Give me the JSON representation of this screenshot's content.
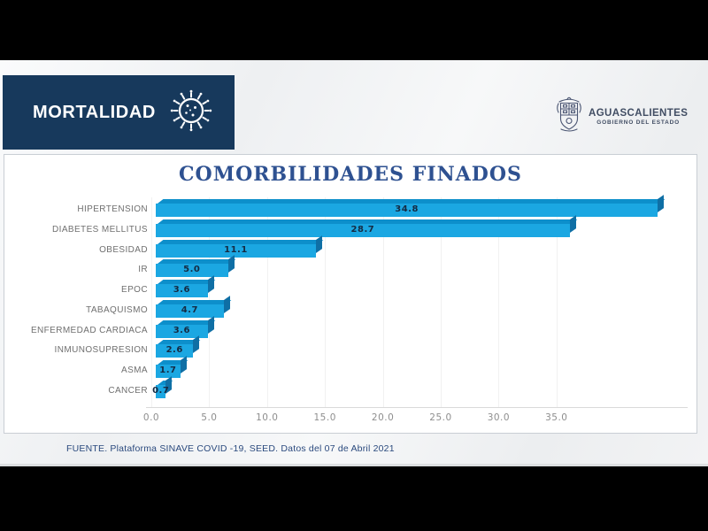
{
  "header": {
    "title": "MORTALIDAD",
    "block_color": "#17395C",
    "icon": "virus-icon"
  },
  "logo": {
    "icon": "state-coat-of-arms",
    "name": "AGUASCALIENTES",
    "subtitle": "GOBIERNO DEL ESTADO"
  },
  "chart_data": {
    "type": "bar",
    "orientation": "horizontal",
    "title": "COMORBILIDADES FINADOS",
    "categories": [
      "HIPERTENSION",
      "DIABETES MELLITUS",
      "OBESIDAD",
      "IR",
      "EPOC",
      "TABAQUISMO",
      "ENFERMEDAD CARDIACA",
      "INMUNOSUPRESION",
      "ASMA",
      "CANCER"
    ],
    "values": [
      34.8,
      28.7,
      11.1,
      5.0,
      3.6,
      4.7,
      3.6,
      2.6,
      1.7,
      0.7
    ],
    "x_ticks": [
      "0.0",
      "5.0",
      "10.0",
      "15.0",
      "20.0",
      "25.0",
      "30.0",
      "35.0"
    ],
    "xlim": [
      0,
      35
    ],
    "grid": "faint-vertical",
    "legend": "none",
    "bar_color": "#1BA7E2",
    "bar_top_color": "#0D8FCB",
    "bar_side_color": "#0F6FA5",
    "value_label_color": "#152A42",
    "title_color": "#2E5191"
  },
  "footer": {
    "source": "FUENTE. Plataforma SINAVE COVID -19, SEED. Datos del 07 de Abril 2021"
  }
}
